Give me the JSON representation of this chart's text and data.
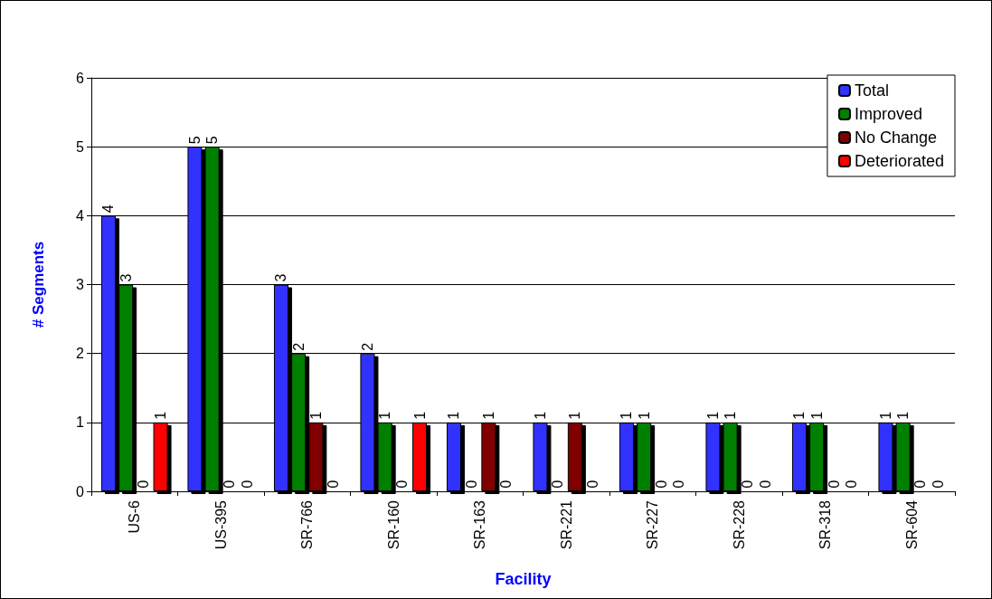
{
  "chart_data": {
    "type": "bar",
    "xlabel": "Facility",
    "ylabel": "# Segments",
    "categories": [
      "US-6",
      "US-395",
      "SR-766",
      "SR-160",
      "SR-163",
      "SR-221",
      "SR-227",
      "SR-228",
      "SR-318",
      "SR-604"
    ],
    "series": [
      {
        "name": "Total",
        "color": "#3333ff",
        "values": [
          4,
          5,
          3,
          2,
          1,
          1,
          1,
          1,
          1,
          1
        ]
      },
      {
        "name": "Improved",
        "color": "#008000",
        "values": [
          3,
          5,
          2,
          1,
          0,
          0,
          1,
          1,
          1,
          1
        ]
      },
      {
        "name": "No Change",
        "color": "#800000",
        "values": [
          0,
          0,
          1,
          0,
          1,
          1,
          0,
          0,
          0,
          0
        ]
      },
      {
        "name": "Deteriorated",
        "color": "#ff0000",
        "values": [
          1,
          0,
          0,
          1,
          0,
          0,
          0,
          0,
          0,
          0
        ]
      }
    ],
    "ylim": [
      0,
      6
    ],
    "yticks": [
      0,
      1,
      2,
      3,
      4,
      5,
      6
    ],
    "grid": "y",
    "legend": "top right",
    "data_labels": true
  }
}
